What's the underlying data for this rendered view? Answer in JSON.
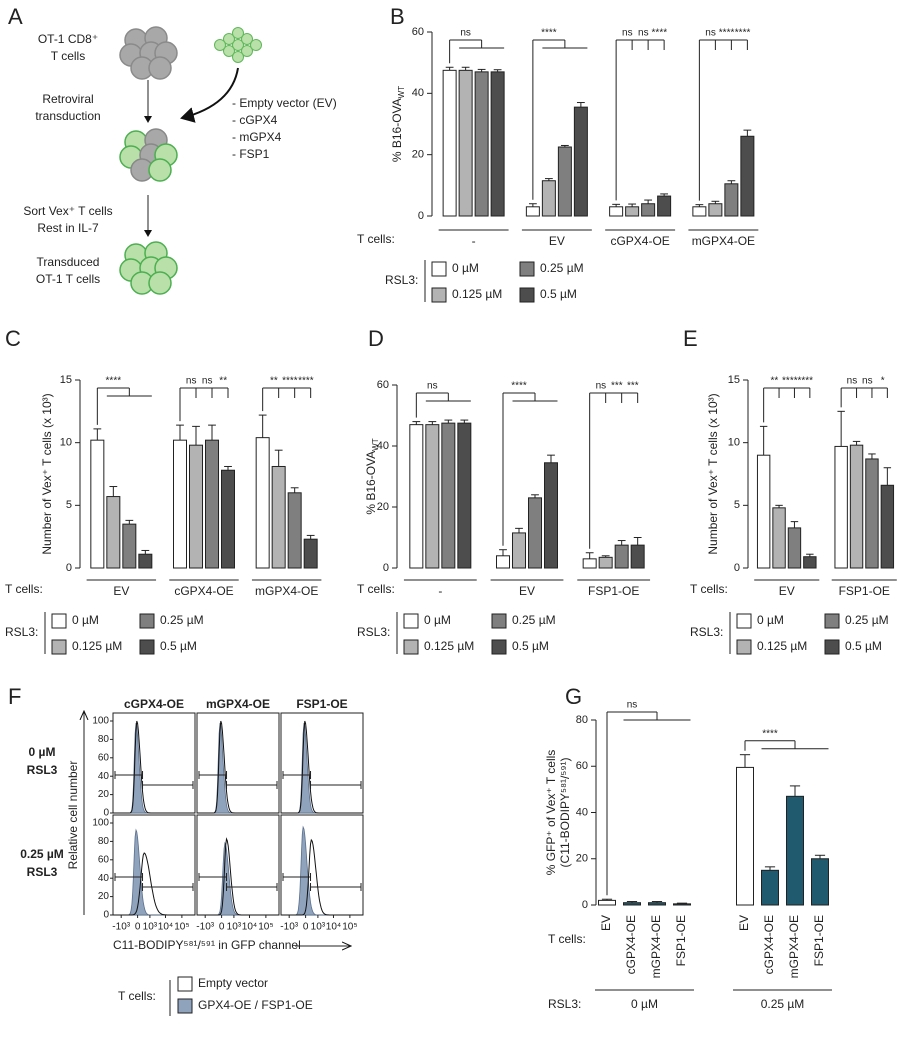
{
  "panel_a": {
    "letter": "A",
    "cells_label": [
      "OT-1 CD8⁺",
      "T cells"
    ],
    "step1": [
      "Retroviral",
      "transduction"
    ],
    "constructs": [
      "- Empty vector (EV)",
      "- cGPX4",
      "- mGPX4",
      "- FSP1"
    ],
    "construct_colors": [
      "#222222",
      "#1f5a6e",
      "#1f5a6e",
      "#1f5a6e"
    ],
    "step2": [
      "Sort Vex⁺ T cells",
      "Rest in IL-7"
    ],
    "result_label": [
      "Transduced",
      "OT-1 T cells"
    ]
  },
  "chart_data": [
    {
      "type": "grouped-bar",
      "panel": "B",
      "ylabel": "% B16-OVA",
      "ylabel_sub": "WT",
      "ylim": [
        0,
        60
      ],
      "yticks": [
        0,
        20,
        40,
        60
      ],
      "row_label": "T cells:",
      "groups": [
        "-",
        "EV",
        "cGPX4-OE",
        "mGPX4-OE"
      ],
      "group_colors": [
        "#222222",
        "#222222",
        "#1f5a6e",
        "#1f5a6e"
      ],
      "legend_title": "RSL3:",
      "series": [
        {
          "name": "0 µM",
          "color": "#ffffff",
          "values": [
            47.5,
            3,
            3,
            3
          ],
          "errors": [
            1,
            1,
            0.8,
            0.7
          ]
        },
        {
          "name": "0.125 µM",
          "color": "#b3b3b3",
          "values": [
            47.5,
            11.5,
            3,
            4
          ],
          "errors": [
            1,
            0.7,
            0.9,
            0.8
          ]
        },
        {
          "name": "0.25 µM",
          "color": "#7f7f7f",
          "values": [
            47,
            22.5,
            4,
            10.5
          ],
          "errors": [
            0.8,
            0.5,
            1.2,
            1
          ]
        },
        {
          "name": "0.5 µM",
          "color": "#4d4d4d",
          "values": [
            47,
            35.5,
            6.5,
            26
          ],
          "errors": [
            0.7,
            1.5,
            0.7,
            2
          ]
        }
      ],
      "significance": [
        [
          "ns"
        ],
        [
          "****"
        ],
        [
          "ns",
          "ns",
          "****"
        ],
        [
          "ns",
          "****",
          "****"
        ]
      ]
    },
    {
      "type": "grouped-bar",
      "panel": "C",
      "ylabel": "Number of Vex⁺ T cells (x 10³)",
      "ylim": [
        0,
        15
      ],
      "yticks": [
        0,
        5,
        10,
        15
      ],
      "row_label": "T cells:",
      "groups": [
        "EV",
        "cGPX4-OE",
        "mGPX4-OE"
      ],
      "group_colors": [
        "#222222",
        "#1f5a6e",
        "#1f5a6e"
      ],
      "legend_title": "RSL3:",
      "series": [
        {
          "name": "0 µM",
          "color": "#ffffff",
          "values": [
            10.2,
            10.2,
            10.4
          ],
          "errors": [
            0.9,
            1.2,
            1.8
          ]
        },
        {
          "name": "0.125 µM",
          "color": "#b3b3b3",
          "values": [
            5.7,
            9.8,
            8.1
          ],
          "errors": [
            0.8,
            1.5,
            1.3
          ]
        },
        {
          "name": "0.25 µM",
          "color": "#7f7f7f",
          "values": [
            3.5,
            10.2,
            6
          ],
          "errors": [
            0.3,
            1.2,
            0.4
          ]
        },
        {
          "name": "0.5 µM",
          "color": "#4d4d4d",
          "values": [
            1.1,
            7.8,
            2.3
          ],
          "errors": [
            0.3,
            0.3,
            0.3
          ]
        }
      ],
      "significance": [
        [
          "****"
        ],
        [
          "ns",
          "ns",
          "**"
        ],
        [
          "**",
          "****",
          "****"
        ]
      ]
    },
    {
      "type": "grouped-bar",
      "panel": "D",
      "ylabel": "% B16-OVA",
      "ylabel_sub": "WT",
      "ylim": [
        0,
        60
      ],
      "yticks": [
        0,
        20,
        40,
        60
      ],
      "row_label": "T cells:",
      "groups": [
        "-",
        "EV",
        "FSP1-OE"
      ],
      "group_colors": [
        "#222222",
        "#222222",
        "#1f5a6e"
      ],
      "legend_title": "RSL3:",
      "series": [
        {
          "name": "0 µM",
          "color": "#ffffff",
          "values": [
            47,
            4,
            3
          ],
          "errors": [
            1,
            2,
            2
          ]
        },
        {
          "name": "0.125 µM",
          "color": "#b3b3b3",
          "values": [
            47,
            11.5,
            3.5
          ],
          "errors": [
            1,
            1.5,
            0.5
          ]
        },
        {
          "name": "0.25 µM",
          "color": "#7f7f7f",
          "values": [
            47.5,
            23,
            7.5
          ],
          "errors": [
            1,
            1,
            1.5
          ]
        },
        {
          "name": "0.5 µM",
          "color": "#4d4d4d",
          "values": [
            47.5,
            34.5,
            7.5
          ],
          "errors": [
            1,
            2.5,
            2.5
          ]
        }
      ],
      "significance": [
        [
          "ns"
        ],
        [
          "****"
        ],
        [
          "ns",
          "***",
          "***"
        ]
      ]
    },
    {
      "type": "grouped-bar",
      "panel": "E",
      "ylabel": "Number of Vex⁺ T cells (x 10³)",
      "ylim": [
        0,
        15
      ],
      "yticks": [
        0,
        5,
        10,
        15
      ],
      "row_label": "T cells:",
      "groups": [
        "EV",
        "FSP1-OE"
      ],
      "group_colors": [
        "#222222",
        "#1f5a6e"
      ],
      "legend_title": "RSL3:",
      "series": [
        {
          "name": "0 µM",
          "color": "#ffffff",
          "values": [
            9,
            9.7
          ],
          "errors": [
            2.3,
            2.8
          ]
        },
        {
          "name": "0.125 µM",
          "color": "#b3b3b3",
          "values": [
            4.8,
            9.8
          ],
          "errors": [
            0.2,
            0.3
          ]
        },
        {
          "name": "0.25 µM",
          "color": "#7f7f7f",
          "values": [
            3.2,
            8.7
          ],
          "errors": [
            0.5,
            0.4
          ]
        },
        {
          "name": "0.5 µM",
          "color": "#4d4d4d",
          "values": [
            0.9,
            6.6
          ],
          "errors": [
            0.2,
            1.4
          ]
        }
      ],
      "significance": [
        [
          "**",
          "****",
          "****"
        ],
        [
          "ns",
          "ns",
          "*"
        ]
      ]
    },
    {
      "type": "bar",
      "panel": "G",
      "ylabel": [
        "% GFP⁺ of Vex⁺ T cells",
        "(C11-BODIPY⁵⁸¹/⁵⁹¹)"
      ],
      "ylim": [
        0,
        80
      ],
      "yticks": [
        0,
        20,
        40,
        60,
        80
      ],
      "row_label": "T cells:",
      "categories": [
        "EV",
        "cGPX4-OE",
        "mGPX4-OE",
        "FSP1-OE",
        "EV",
        "cGPX4-OE",
        "mGPX4-OE",
        "FSP1-OE"
      ],
      "values": [
        2,
        1,
        1,
        0.5,
        59.5,
        15,
        47,
        20
      ],
      "errors": [
        0.5,
        0.5,
        0.5,
        0.3,
        5.5,
        1.5,
        4.5,
        1.5
      ],
      "colors": [
        "#ffffff",
        "#1f5a6e",
        "#1f5a6e",
        "#1f5a6e",
        "#ffffff",
        "#1f5a6e",
        "#1f5a6e",
        "#1f5a6e"
      ],
      "group_title": "RSL3:",
      "groups": [
        "0 µM",
        "0.25 µM"
      ],
      "significance": [
        "ns",
        "****"
      ]
    }
  ],
  "panel_f": {
    "letter": "F",
    "column_titles": [
      "cGPX4-OE",
      "mGPX4-OE",
      "FSP1-OE"
    ],
    "row_labels": [
      [
        "0 µM",
        "RSL3"
      ],
      [
        "0.25 µM",
        "RSL3"
      ]
    ],
    "ylabel": "Relative cell number",
    "xlabel": "C11-BODIPY⁵⁸¹/⁵⁹¹ in GFP channel",
    "ytick_labels": [
      "0",
      "20",
      "40",
      "60",
      "80",
      "100"
    ],
    "xtick_labels": [
      "-10³",
      "0",
      "10³",
      "10⁴",
      "10⁵"
    ],
    "legend_title": "T cells:",
    "legend": [
      {
        "name": "Empty vector",
        "color": "#ffffff"
      },
      {
        "name": "GPX4-OE / FSP1-OE",
        "color": "#8fa3bd"
      }
    ]
  }
}
